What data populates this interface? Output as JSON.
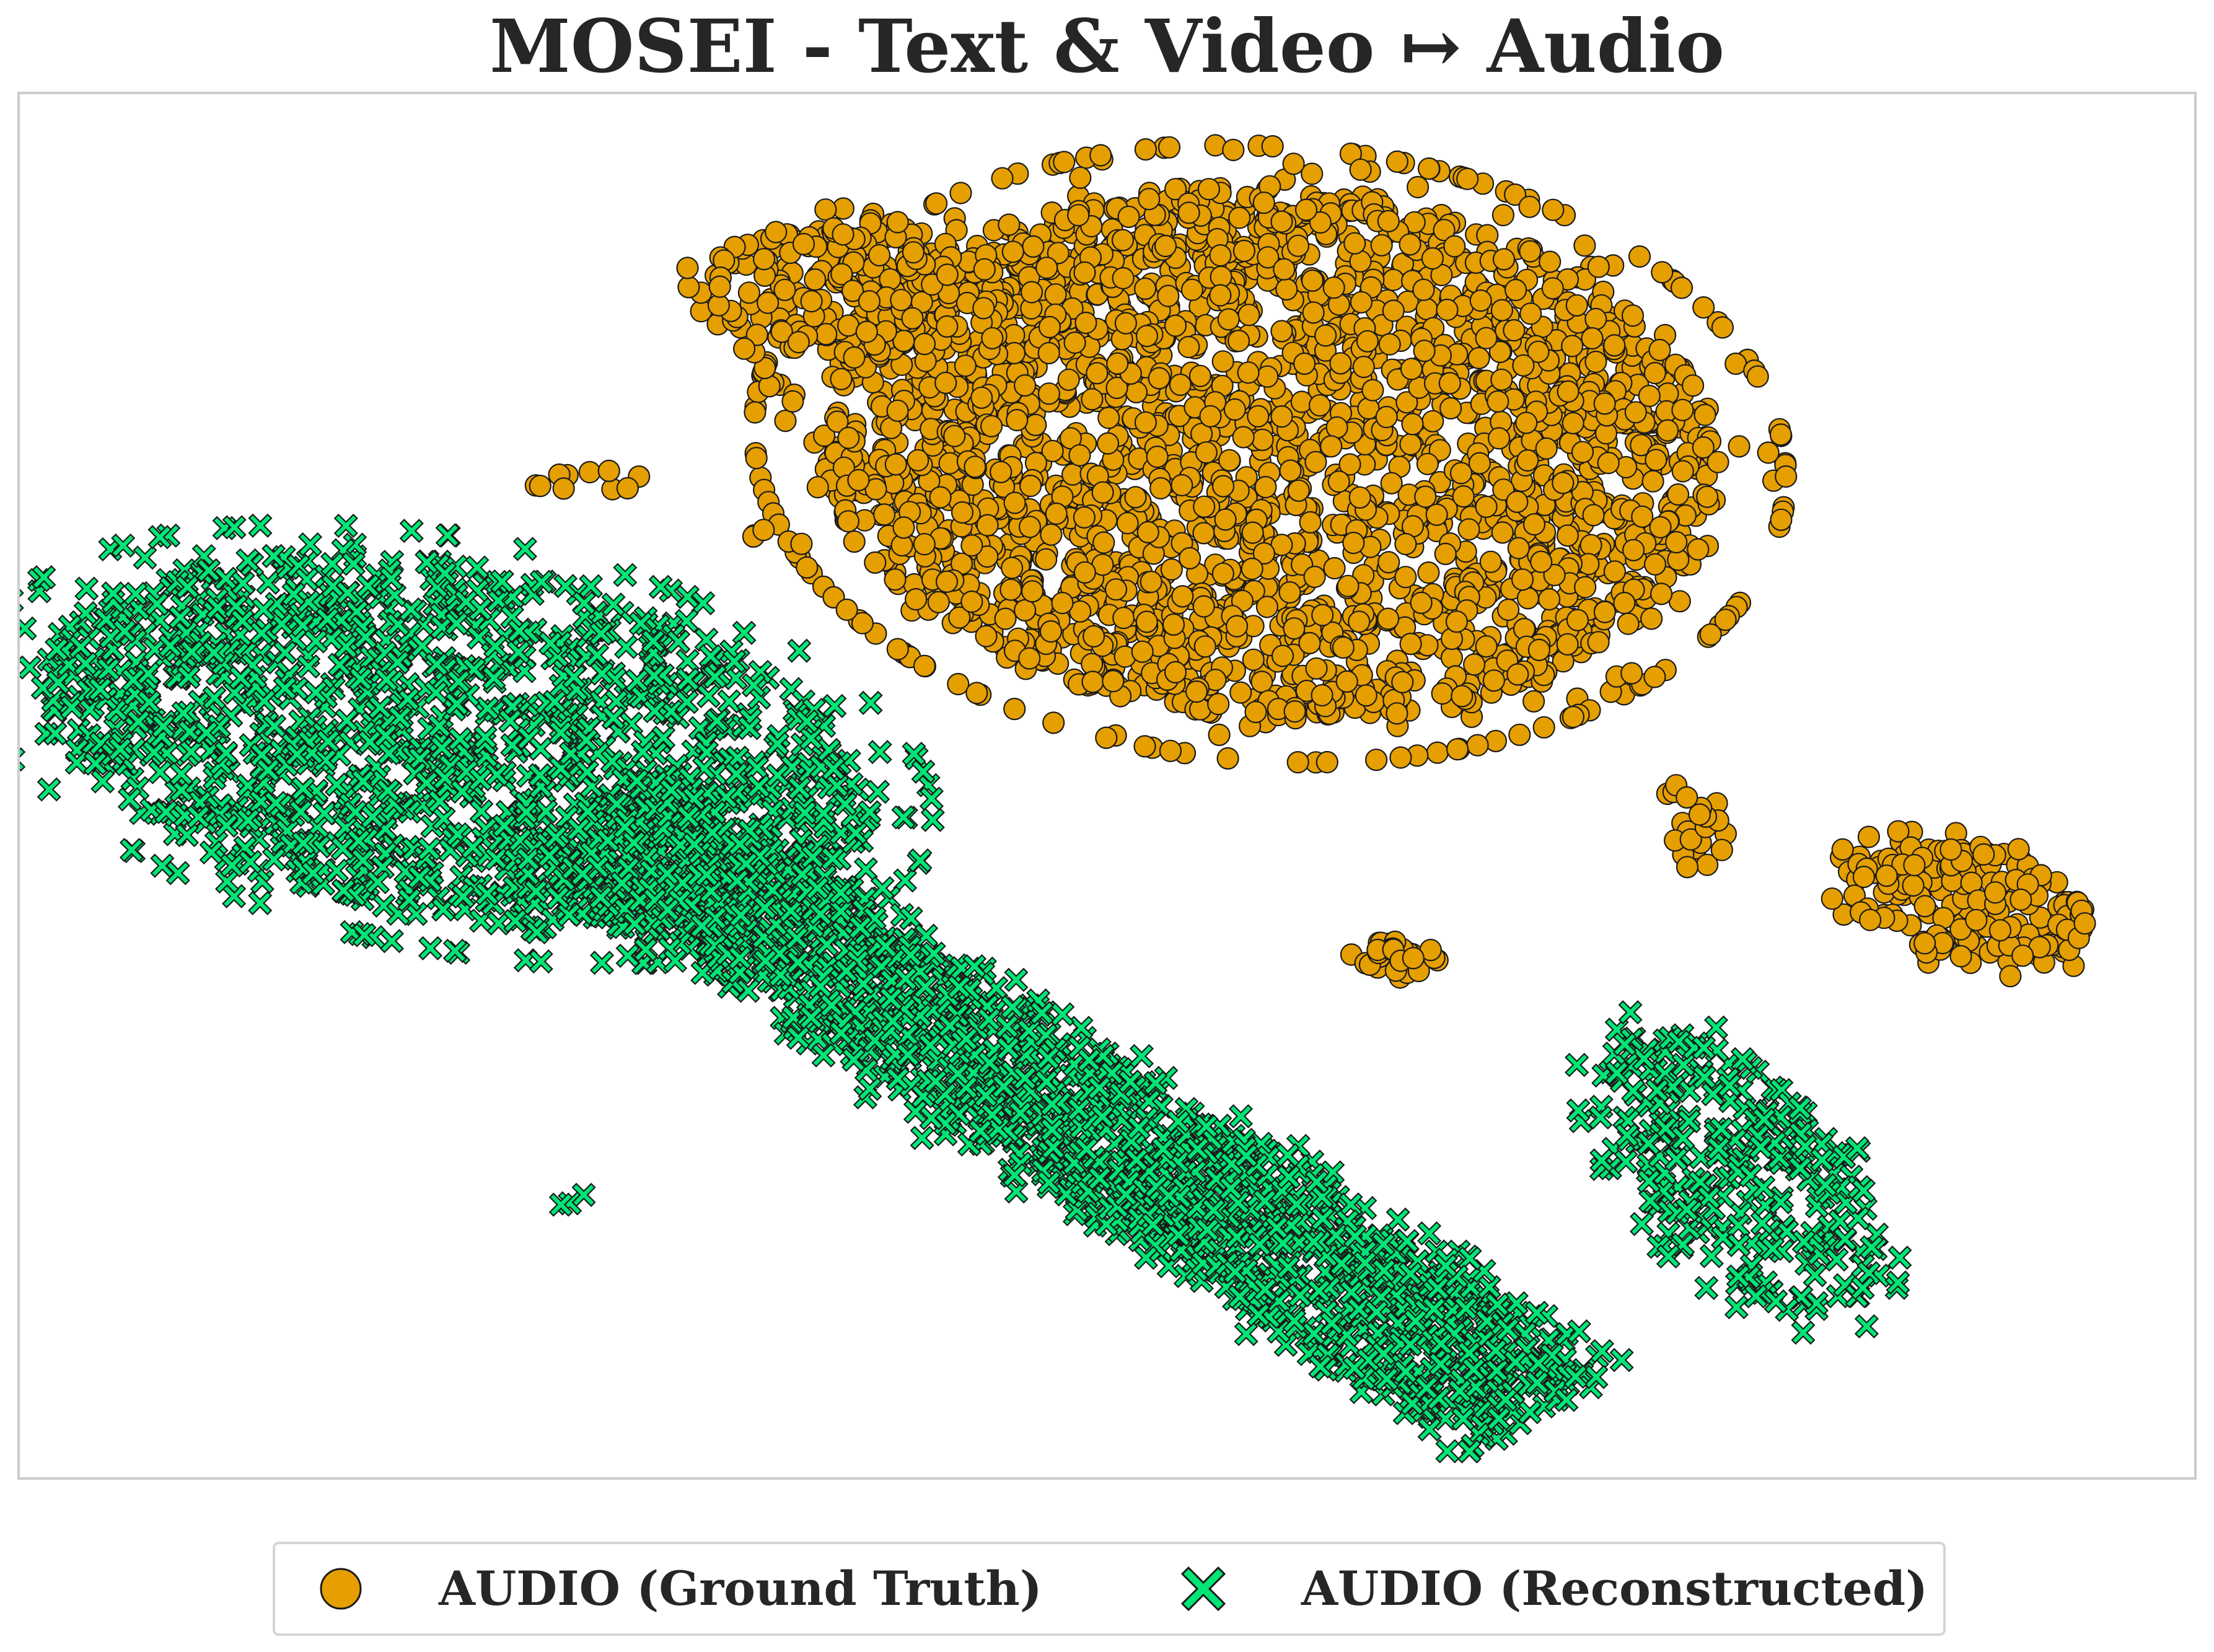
{
  "chart_data": {
    "type": "scatter",
    "title": "MOSEI - Text & Video ↦ Audio",
    "xlabel": "",
    "ylabel": "",
    "grid": false,
    "legend_placement": "bottom-center",
    "xlim": [
      0,
      100
    ],
    "ylim": [
      0,
      100
    ],
    "series": [
      {
        "name": "AUDIO (Ground Truth)",
        "marker": "circle",
        "color": "#E69F00",
        "edge_color": "#1a1a1a",
        "clusters": [
          {
            "shape": "ellipse",
            "cx": 57.5,
            "cy": 74.0,
            "rx": 21.0,
            "ry": 19.0,
            "rotation": -26,
            "count": 2600
          },
          {
            "shape": "ellipse",
            "cx": 38.5,
            "cy": 86.0,
            "rx": 7.0,
            "ry": 5.0,
            "rotation": 0,
            "count": 260
          },
          {
            "shape": "ellipse",
            "cx": 89.5,
            "cy": 41.5,
            "rx": 6.0,
            "ry": 4.0,
            "rotation": -30,
            "count": 200
          },
          {
            "shape": "ellipse",
            "cx": 63.5,
            "cy": 37.5,
            "rx": 2.0,
            "ry": 1.4,
            "rotation": 0,
            "count": 28
          },
          {
            "shape": "ellipse",
            "cx": 77.0,
            "cy": 47.0,
            "rx": 1.5,
            "ry": 3.0,
            "rotation": 0,
            "count": 24
          },
          {
            "shape": "ellipse",
            "cx": 26.0,
            "cy": 72.0,
            "rx": 3.0,
            "ry": 0.7,
            "rotation": 0,
            "count": 10
          },
          {
            "shape": "ellipse",
            "cx": 34.0,
            "cy": 68.5,
            "rx": 0.4,
            "ry": 0.8,
            "rotation": 0,
            "count": 3
          }
        ]
      },
      {
        "name": "AUDIO (Reconstructed)",
        "marker": "x",
        "color": "#00E676",
        "edge_color": "#1a1a1a",
        "clusters": [
          {
            "shape": "ellipse",
            "cx": 20.0,
            "cy": 53.0,
            "rx": 20.0,
            "ry": 12.5,
            "rotation": -22,
            "count": 1300
          },
          {
            "shape": "band",
            "x0": 26.0,
            "y0": 48.0,
            "x1": 70.0,
            "y1": 5.0,
            "width": 9.0,
            "count": 1700
          },
          {
            "shape": "ellipse",
            "cx": 79.0,
            "cy": 22.0,
            "rx": 5.0,
            "ry": 11.0,
            "rotation": 25,
            "count": 280
          },
          {
            "shape": "ellipse",
            "cx": 25.5,
            "cy": 20.0,
            "rx": 0.8,
            "ry": 0.6,
            "rotation": 0,
            "count": 3
          }
        ]
      }
    ]
  },
  "legend": {
    "items": [
      {
        "label": "AUDIO (Ground Truth)",
        "marker": "circle-marker"
      },
      {
        "label": "AUDIO (Reconstructed)",
        "marker": "x-marker"
      }
    ]
  }
}
